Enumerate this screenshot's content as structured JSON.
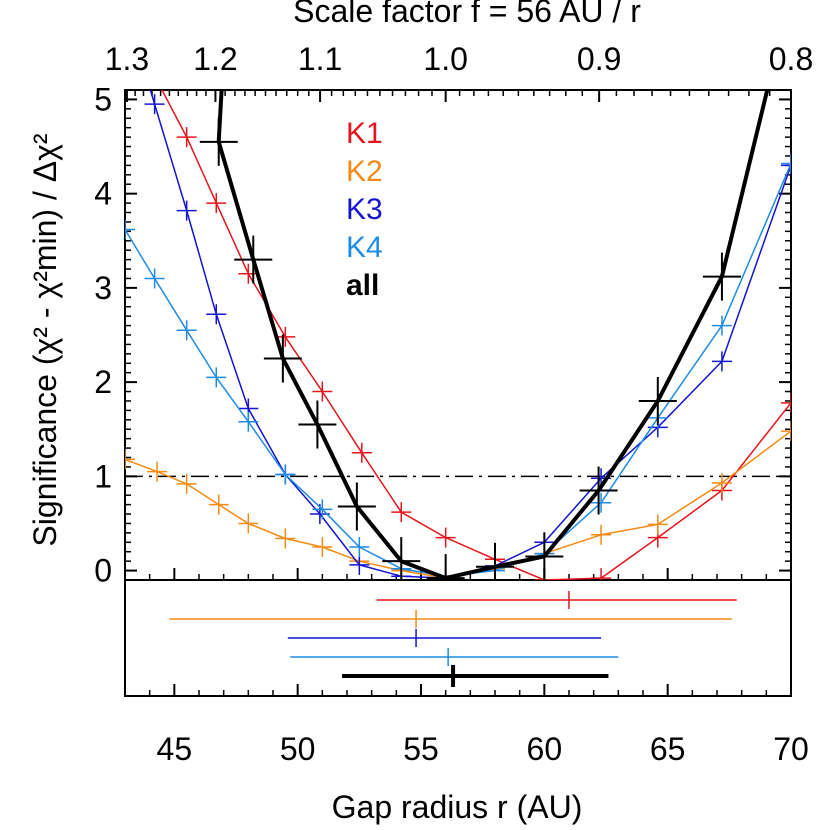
{
  "chart_data": {
    "type": "line",
    "title": "",
    "xlabel": "Gap radius r (AU)",
    "ylabel": "Significance (χ² - χ²min) / Δχ²",
    "top_axis_label": "Scale factor f = 56 AU / r",
    "xlim": [
      43,
      70
    ],
    "ylim": [
      -0.1,
      5.1
    ],
    "x_ticks": [
      45,
      50,
      55,
      60,
      65,
      70
    ],
    "y_ticks": [
      0,
      1,
      2,
      3,
      4,
      5
    ],
    "top_ticks": [
      1.3,
      1.2,
      1.1,
      1.0,
      0.9,
      0.8
    ],
    "top_tick_labels": [
      "1.3",
      "1.2",
      "1.1",
      "1.0",
      "0.9",
      "0.8"
    ],
    "threshold": 1,
    "legend_position": "upper-center",
    "series": [
      {
        "name": "K1",
        "color": "#e8141c",
        "width": 1.5,
        "err": false,
        "points": [
          [
            43.5,
            5.6
          ],
          [
            45.5,
            4.6
          ],
          [
            46.7,
            3.9
          ],
          [
            48.0,
            3.15
          ],
          [
            49.5,
            2.48
          ],
          [
            51.0,
            1.9
          ],
          [
            52.6,
            1.25
          ],
          [
            54.2,
            0.62
          ],
          [
            56.0,
            0.35
          ],
          [
            58.0,
            0.12
          ],
          [
            60.0,
            -0.1
          ],
          [
            62.3,
            -0.08
          ],
          [
            64.6,
            0.35
          ],
          [
            67.2,
            0.85
          ],
          [
            70.0,
            1.78
          ]
        ]
      },
      {
        "name": "K2",
        "color": "#f58a14",
        "width": 1.5,
        "err": false,
        "points": [
          [
            43.0,
            1.18
          ],
          [
            44.3,
            1.05
          ],
          [
            45.5,
            0.92
          ],
          [
            46.8,
            0.7
          ],
          [
            48.0,
            0.5
          ],
          [
            49.5,
            0.34
          ],
          [
            51.0,
            0.25
          ],
          [
            52.5,
            0.1
          ],
          [
            54.2,
            0.0
          ],
          [
            56.0,
            -0.08
          ],
          [
            58.0,
            0.02
          ],
          [
            60.0,
            0.18
          ],
          [
            62.3,
            0.38
          ],
          [
            64.6,
            0.49
          ],
          [
            67.2,
            0.93
          ],
          [
            70.0,
            1.48
          ]
        ]
      },
      {
        "name": "K3",
        "color": "#1414d2",
        "width": 1.5,
        "err": false,
        "points": [
          [
            43.0,
            6.0
          ],
          [
            44.2,
            4.95
          ],
          [
            45.5,
            3.82
          ],
          [
            46.7,
            2.72
          ],
          [
            48.0,
            1.72
          ],
          [
            49.5,
            1.02
          ],
          [
            50.9,
            0.6
          ],
          [
            52.5,
            0.06
          ],
          [
            54.2,
            -0.06
          ],
          [
            56.0,
            -0.08
          ],
          [
            58.0,
            0.05
          ],
          [
            60.0,
            0.3
          ],
          [
            62.3,
            0.98
          ],
          [
            64.6,
            1.52
          ],
          [
            67.2,
            2.22
          ],
          [
            70.0,
            4.3
          ]
        ]
      },
      {
        "name": "K4",
        "color": "#1e8ce6",
        "width": 1.5,
        "err": false,
        "points": [
          [
            43.0,
            3.62
          ],
          [
            44.2,
            3.1
          ],
          [
            45.5,
            2.55
          ],
          [
            46.7,
            2.05
          ],
          [
            48.0,
            1.58
          ],
          [
            49.5,
            1.02
          ],
          [
            51.0,
            0.65
          ],
          [
            52.5,
            0.25
          ],
          [
            54.2,
            0.02
          ],
          [
            56.0,
            -0.06
          ],
          [
            58.0,
            0.0
          ],
          [
            60.0,
            0.18
          ],
          [
            62.3,
            0.72
          ],
          [
            64.6,
            1.62
          ],
          [
            67.2,
            2.6
          ],
          [
            70.0,
            4.32
          ]
        ]
      },
      {
        "name": "all",
        "color": "#000000",
        "width": 4,
        "err": true,
        "points": [
          [
            47.0,
            5.5
          ],
          [
            46.8,
            4.55
          ],
          [
            48.2,
            3.3
          ],
          [
            49.4,
            2.25
          ],
          [
            50.8,
            1.55
          ],
          [
            52.4,
            0.68
          ],
          [
            54.2,
            0.1
          ],
          [
            56.0,
            -0.08
          ],
          [
            58.0,
            0.04
          ],
          [
            60.0,
            0.15
          ],
          [
            62.2,
            0.85
          ],
          [
            64.6,
            1.8
          ],
          [
            67.2,
            3.12
          ],
          [
            69.5,
            5.6
          ]
        ]
      }
    ],
    "bottom_panel": [
      {
        "name": "K1",
        "color": "#e8141c",
        "center": 61.0,
        "lo": 53.2,
        "hi": 67.8,
        "width": 1.5
      },
      {
        "name": "K2",
        "color": "#f58a14",
        "center": 54.8,
        "lo": 44.8,
        "hi": 67.6,
        "width": 1.5
      },
      {
        "name": "K3",
        "color": "#1414d2",
        "center": 54.8,
        "lo": 49.6,
        "hi": 62.3,
        "width": 1.5
      },
      {
        "name": "K4",
        "color": "#1e8ce6",
        "center": 56.1,
        "lo": 49.7,
        "hi": 63.0,
        "width": 1.5
      },
      {
        "name": "all",
        "color": "#000000",
        "center": 56.3,
        "lo": 51.8,
        "hi": 62.6,
        "width": 4
      }
    ]
  }
}
